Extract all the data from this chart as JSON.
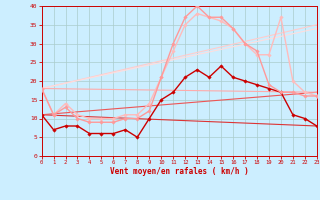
{
  "background_color": "#cceeff",
  "grid_color": "#aacccc",
  "xlabel": "Vent moyen/en rafales ( km/h )",
  "xlabel_color": "#cc0000",
  "tick_color": "#cc0000",
  "xlim": [
    0,
    23
  ],
  "ylim": [
    0,
    40
  ],
  "yticks": [
    0,
    5,
    10,
    15,
    20,
    25,
    30,
    35,
    40
  ],
  "xticks": [
    0,
    1,
    2,
    3,
    4,
    5,
    6,
    7,
    8,
    9,
    10,
    11,
    12,
    13,
    14,
    15,
    16,
    17,
    18,
    19,
    20,
    21,
    22,
    23
  ],
  "lines": [
    {
      "x": [
        0,
        1,
        2,
        3,
        4,
        5,
        6,
        7,
        8,
        9,
        10,
        11,
        12,
        13,
        14,
        15,
        16,
        17,
        18,
        19,
        20,
        21,
        22,
        23
      ],
      "y": [
        11,
        7,
        8,
        8,
        6,
        6,
        6,
        7,
        5,
        10,
        15,
        17,
        21,
        23,
        21,
        24,
        21,
        20,
        19,
        18,
        17,
        11,
        10,
        8
      ],
      "color": "#cc0000",
      "marker": "D",
      "markersize": 1.8,
      "linewidth": 1.0,
      "zorder": 5
    },
    {
      "x": [
        0,
        1,
        2,
        3,
        4,
        5,
        6,
        7,
        8,
        9,
        10,
        11,
        12,
        13,
        14,
        15,
        16,
        17,
        18,
        19,
        20,
        21,
        22,
        23
      ],
      "y": [
        18,
        11,
        13,
        10,
        9,
        9,
        9,
        10,
        10,
        12,
        21,
        30,
        37,
        40,
        37,
        37,
        34,
        30,
        28,
        19,
        17,
        17,
        16,
        16
      ],
      "color": "#ff9999",
      "marker": "D",
      "markersize": 1.8,
      "linewidth": 1.0,
      "zorder": 5
    },
    {
      "x": [
        0,
        1,
        2,
        3,
        4,
        5,
        6,
        7,
        8,
        9,
        10,
        11,
        12,
        13,
        14,
        15,
        16,
        17,
        18,
        19,
        20,
        21,
        22,
        23
      ],
      "y": [
        18,
        11,
        14,
        11,
        10,
        10,
        10,
        11,
        11,
        14,
        21,
        28,
        35,
        38,
        37,
        36,
        34,
        30,
        27,
        27,
        37,
        20,
        17,
        16
      ],
      "color": "#ffbbbb",
      "marker": "D",
      "markersize": 1.8,
      "linewidth": 1.0,
      "zorder": 4
    },
    {
      "x": [
        0,
        23
      ],
      "y": [
        11,
        8
      ],
      "color": "#dd3333",
      "marker": null,
      "markersize": 0,
      "linewidth": 0.8,
      "zorder": 3
    },
    {
      "x": [
        0,
        23
      ],
      "y": [
        11,
        17
      ],
      "color": "#ee5555",
      "marker": null,
      "markersize": 0,
      "linewidth": 0.8,
      "zorder": 3
    },
    {
      "x": [
        0,
        23
      ],
      "y": [
        18,
        17
      ],
      "color": "#ffaaaa",
      "marker": null,
      "markersize": 0,
      "linewidth": 0.8,
      "zorder": 3
    },
    {
      "x": [
        0,
        23
      ],
      "y": [
        18,
        35
      ],
      "color": "#ffcccc",
      "marker": null,
      "markersize": 0,
      "linewidth": 0.8,
      "zorder": 2
    },
    {
      "x": [
        0,
        23
      ],
      "y": [
        18,
        34
      ],
      "color": "#ffdddd",
      "marker": null,
      "markersize": 0,
      "linewidth": 0.8,
      "zorder": 2
    }
  ]
}
